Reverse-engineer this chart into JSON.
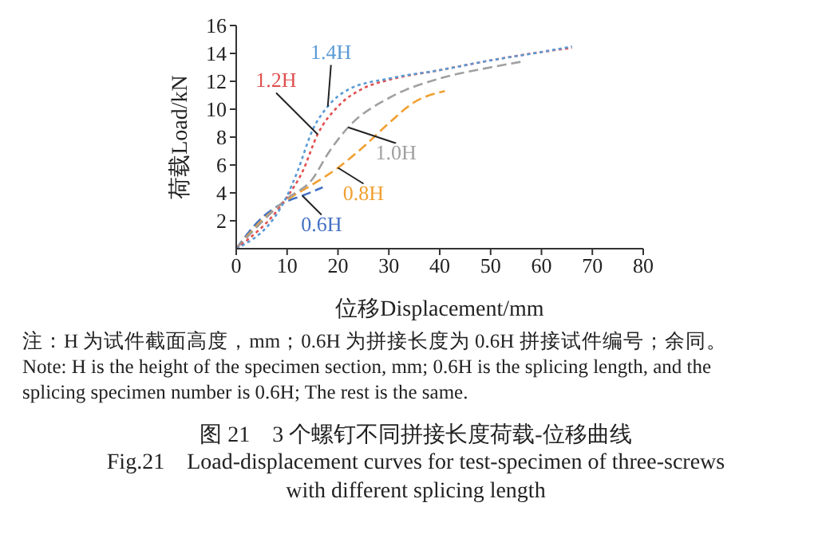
{
  "chart_data": {
    "type": "line",
    "title": "图 21　3 个螺钉不同拼接长度荷载-位移曲线",
    "subtitle": "Fig.21　Load-displacement curves for test-specimen of three-screws with different splicing length",
    "xlabel": "位移Displacement/mm",
    "ylabel": "荷载Load/kN",
    "annotations": [
      "注：H 为试件截面高度，mm；0.6H 为拼接长度为 0.6H 拼接试件编号；余同。",
      "Note: H is the height of the specimen section, mm; 0.6H is the splicing length, and the splicing specimen number is 0.6H; The rest is the same."
    ],
    "xlim": [
      0,
      80
    ],
    "xticks": [
      0,
      10,
      20,
      30,
      40,
      50,
      60,
      70,
      80
    ],
    "ylim": [
      0,
      16
    ],
    "yticks": [
      2,
      4,
      6,
      8,
      10,
      12,
      14,
      16
    ],
    "grid": false,
    "legend": false,
    "marker": "none",
    "series": [
      {
        "name": "0.6H",
        "color": "#4472c4",
        "line_style": "dashed",
        "x": [
          0,
          5,
          10,
          13,
          17
        ],
        "values": [
          0,
          2.2,
          3.4,
          3.8,
          4.4
        ]
      },
      {
        "name": "0.8H",
        "color": "#f0a030",
        "line_style": "dashed",
        "x": [
          0,
          5,
          10,
          15,
          20,
          25,
          30,
          35,
          41
        ],
        "values": [
          0,
          2,
          3.5,
          4.6,
          5.8,
          7.3,
          9,
          10.5,
          11.3
        ]
      },
      {
        "name": "1.0H",
        "color": "#a0a0a0",
        "line_style": "dashed",
        "x": [
          0,
          10,
          15,
          18,
          22,
          30,
          40,
          50,
          56
        ],
        "values": [
          0,
          3.6,
          5,
          6.8,
          8.7,
          10.8,
          12.2,
          13,
          13.4
        ]
      },
      {
        "name": "1.2H",
        "color": "#e05050",
        "line_style": "dotted",
        "x": [
          0,
          10,
          13,
          16,
          20,
          25,
          30,
          40,
          50,
          60,
          66
        ],
        "values": [
          0,
          3.7,
          5.5,
          8.2,
          10.2,
          11.5,
          12.1,
          12.8,
          13.5,
          14.1,
          14.4
        ]
      },
      {
        "name": "1.4H",
        "color": "#5b9bd5",
        "line_style": "dotted",
        "x": [
          0,
          10,
          12,
          15,
          18,
          22,
          30,
          40,
          50,
          60,
          66
        ],
        "values": [
          0,
          3.8,
          5.5,
          8.5,
          10.2,
          11.4,
          12.2,
          12.8,
          13.5,
          14.1,
          14.5
        ]
      }
    ]
  }
}
